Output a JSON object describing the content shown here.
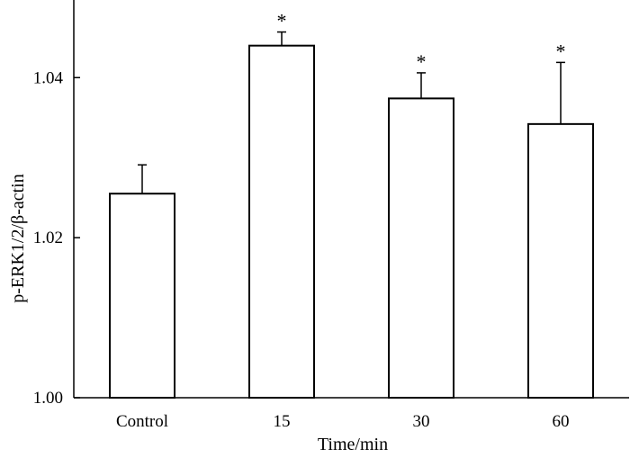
{
  "chart_data": {
    "type": "bar",
    "title": "",
    "xlabel": "Time/min",
    "ylabel": "p-ERK1/2/β-actin",
    "categories": [
      "Control",
      "15",
      "30",
      "60"
    ],
    "values": [
      1.0255,
      1.044,
      1.0374,
      1.0342
    ],
    "errors": [
      0.0036,
      0.0017,
      0.0032,
      0.0077
    ],
    "annotations": [
      "",
      "*",
      "*",
      "*"
    ],
    "ylim": [
      1.0,
      1.0497
    ],
    "yticks": [
      1.0,
      1.02,
      1.04
    ],
    "ytick_labels": [
      "1.00",
      "1.02",
      "1.04"
    ],
    "grid": false,
    "bar_fill": "#ffffff",
    "bar_stroke": "#000000"
  }
}
